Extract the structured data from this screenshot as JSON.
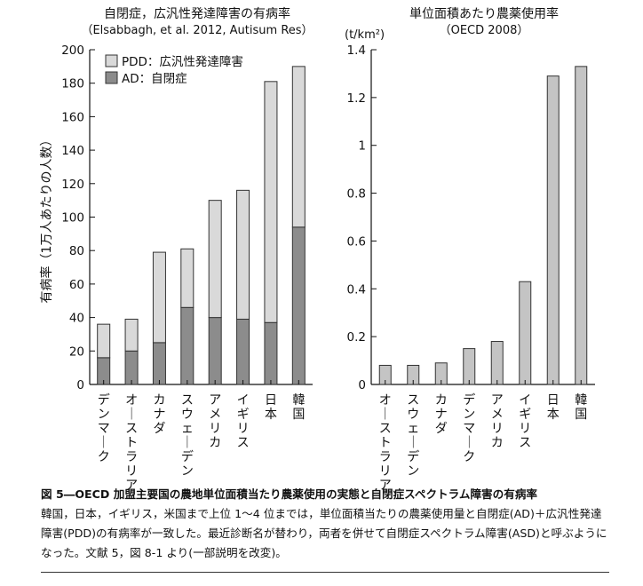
{
  "chart_data": [
    {
      "type": "bar",
      "stacked": true,
      "title": "自閉症，広汎性発達障害の有病率",
      "subtitle": "（Elsabbagh, et al. 2012, Autisum Res）",
      "ylabel": "有病率（1万人あたりの人数）",
      "ylim": [
        0,
        200
      ],
      "yticks": [
        0,
        20,
        40,
        60,
        80,
        100,
        120,
        140,
        160,
        180,
        200
      ],
      "categories": [
        "デンマーク",
        "オーストラリア",
        "カナダ",
        "スウェーデン",
        "アメリカ",
        "イギリス",
        "日本",
        "韓国"
      ],
      "series": [
        {
          "name": "AD：自閉症",
          "color": "#8c8c8c",
          "values": [
            16,
            20,
            25,
            46,
            40,
            39,
            37,
            94
          ]
        },
        {
          "name": "PDD：広汎性発達障害",
          "color": "#d9d9d9",
          "values": [
            20,
            19,
            54,
            35,
            70,
            77,
            144,
            96
          ]
        }
      ],
      "legend_position": "top-left"
    },
    {
      "type": "bar",
      "title": "単位面積あたり農薬使用率",
      "subtitle": "（OECD 2008）",
      "unit": "(t/km²)",
      "ylim": [
        0,
        1.4
      ],
      "yticks": [
        0,
        0.2,
        0.4,
        0.6,
        0.8,
        1,
        1.2,
        1.4
      ],
      "categories": [
        "オーストラリア",
        "スウェーデン",
        "カナダ",
        "デンマーク",
        "アメリカ",
        "イギリス",
        "日本",
        "韓国"
      ],
      "values": [
        0.08,
        0.08,
        0.09,
        0.15,
        0.18,
        0.43,
        1.29,
        1.33
      ],
      "color": "#c4c4c4"
    }
  ],
  "caption": {
    "title": "図 5―OECD 加盟主要国の農地単位面積当たり農薬使用の実態と自閉症スペクトラム障害の有病率",
    "body": "韓国，日本，イギリス，米国まで上位 1～4 位までは，単位面積当たりの農薬使用量と自閉症(AD)＋広汎性発達障害(PDD)の有病率が一致した。最近診断名が替わり，両者を併せて自閉症スペクトラム障害(ASD)と呼ぶようになった。文献 5，図 8-1 より(一部説明を改変)。"
  }
}
